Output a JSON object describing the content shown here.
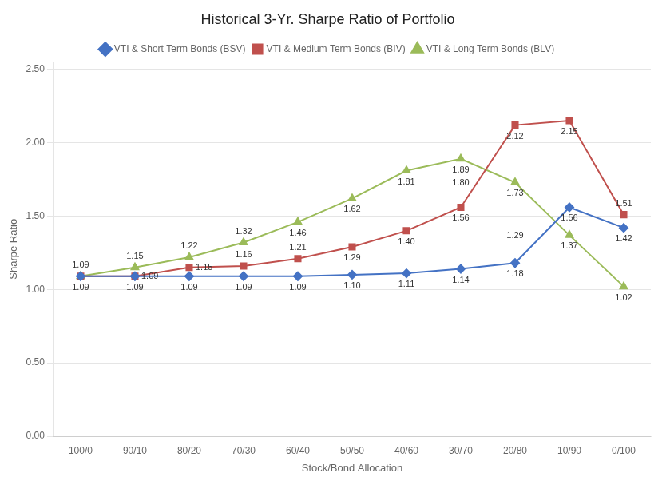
{
  "chart_data": {
    "type": "line",
    "title": "Historical 3-Yr. Sharpe Ratio of Portfolio",
    "x_label": "Stock/Bond Allocation",
    "y_label": "Sharpe Ratio",
    "categories": [
      "100/0",
      "90/10",
      "80/20",
      "70/30",
      "60/40",
      "50/50",
      "40/60",
      "30/70",
      "20/80",
      "10/90",
      "0/100"
    ],
    "series": [
      {
        "name": "VTI & Short Term Bonds (BSV)",
        "color": "#4472C4",
        "marker": "diamond",
        "values": [
          1.09,
          1.09,
          1.09,
          1.09,
          1.09,
          1.1,
          1.11,
          1.14,
          1.18,
          1.56,
          1.42
        ]
      },
      {
        "name": "VTI & Medium Term Bonds (BIV)",
        "color": "#C0504D",
        "marker": "square",
        "values": [
          1.09,
          1.09,
          1.15,
          1.16,
          1.21,
          1.29,
          1.4,
          1.56,
          2.12,
          2.15,
          1.51
        ]
      },
      {
        "name": "VTI & Long Term Bonds (BLV)",
        "color": "#9BBB59",
        "marker": "triangle",
        "values": [
          1.09,
          1.15,
          1.22,
          1.32,
          1.46,
          1.62,
          1.81,
          1.89,
          1.73,
          1.37,
          1.02
        ]
      }
    ],
    "annotations": [
      {
        "x": "100/0",
        "y": 1.09,
        "text": "1.09"
      },
      {
        "x": "90/10",
        "y": 1.09,
        "text": "1.09"
      },
      {
        "x": "80/20",
        "y": 1.09,
        "text": "1.09"
      },
      {
        "x": "70/30",
        "y": 1.09,
        "text": "1.09"
      },
      {
        "x": "60/40",
        "y": 1.09,
        "text": "1.09"
      },
      {
        "x": "50/50",
        "y": 1.1,
        "text": "1.10"
      },
      {
        "x": "40/60",
        "y": 1.11,
        "text": "1.11"
      },
      {
        "x": "30/70",
        "y": 1.14,
        "text": "1.14"
      },
      {
        "x": "20/80",
        "y": 1.18,
        "text": "1.18"
      },
      {
        "x": "10/90",
        "y": 1.56,
        "text": "1.56"
      },
      {
        "x": "0/100",
        "y": 1.42,
        "text": "1.42"
      },
      {
        "x": "90/10",
        "y": 1.09,
        "text": "1.09"
      },
      {
        "x": "80/20",
        "y": 1.15,
        "text": "1.15"
      },
      {
        "x": "70/30",
        "y": 1.16,
        "text": "1.16"
      },
      {
        "x": "60/40",
        "y": 1.21,
        "text": "1.21"
      },
      {
        "x": "50/50",
        "y": 1.29,
        "text": "1.29"
      },
      {
        "x": "40/60",
        "y": 1.4,
        "text": "1.40"
      },
      {
        "x": "30/70",
        "y": 1.56,
        "text": "1.56"
      },
      {
        "x": "20/80",
        "y": 2.12,
        "text": "2.12"
      },
      {
        "x": "10/90",
        "y": 2.15,
        "text": "2.15"
      },
      {
        "x": "0/100",
        "y": 1.51,
        "text": "1.51"
      },
      {
        "x": "100/0",
        "y": 1.09,
        "text": "1.09"
      },
      {
        "x": "90/10",
        "y": 1.15,
        "text": "1.15"
      },
      {
        "x": "80/20",
        "y": 1.22,
        "text": "1.22"
      },
      {
        "x": "70/30",
        "y": 1.32,
        "text": "1.32"
      },
      {
        "x": "60/40",
        "y": 1.46,
        "text": "1.46"
      },
      {
        "x": "50/50",
        "y": 1.62,
        "text": "1.62"
      },
      {
        "x": "40/60",
        "y": 1.81,
        "text": "1.81"
      },
      {
        "x": "30/70",
        "y": 1.89,
        "text": "1.89"
      },
      {
        "x": "20/80",
        "y": 1.73,
        "text": "1.73"
      },
      {
        "x": "10/90",
        "y": 1.37,
        "text": "1.37"
      },
      {
        "x": "0/100",
        "y": 1.02,
        "text": "1.02"
      },
      {
        "x": "20/80",
        "y": 1.29,
        "text": "1.29"
      },
      {
        "x": "30/70",
        "y": 1.8,
        "text": "1.80"
      }
    ],
    "ylim": [
      0.0,
      2.55
    ],
    "yticks": [
      {
        "value": 0.0,
        "label": "0.00"
      },
      {
        "value": 0.5,
        "label": "0.50"
      },
      {
        "value": 1.0,
        "label": "1.00"
      },
      {
        "value": 1.5,
        "label": "1.50"
      },
      {
        "value": 2.0,
        "label": "2.00"
      },
      {
        "value": 2.5,
        "label": "2.50"
      }
    ],
    "grid": true,
    "legend": "top"
  }
}
